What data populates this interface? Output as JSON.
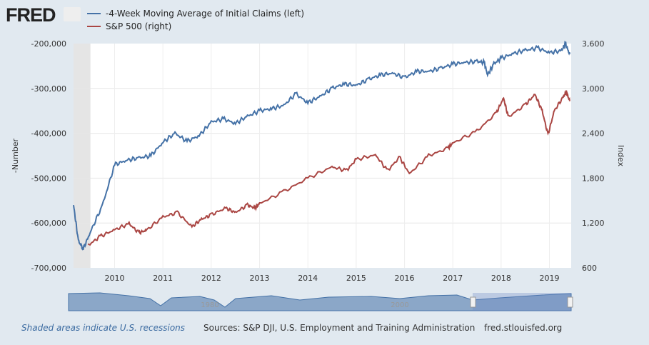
{
  "logo": "FRED",
  "footer": {
    "recession_note": "Shaded areas indicate U.S. recessions",
    "sources": "Sources: S&P DJI, U.S. Employment and Training Administration",
    "site": "fred.stlouisfed.org"
  },
  "navigator": {
    "labels": [
      "1980",
      "2000"
    ]
  },
  "chart_data": {
    "type": "line",
    "xlim": [
      2009.15,
      2019.45
    ],
    "x_ticks": [
      2010,
      2011,
      2012,
      2013,
      2014,
      2015,
      2016,
      2017,
      2018,
      2019
    ],
    "ylabel_left": "-Number",
    "ylabel_right": "Index",
    "ylim_left": [
      -700000,
      -200000
    ],
    "ylim_right": [
      600,
      3600
    ],
    "yticks_left": [
      "-200,000",
      "-300,000",
      "-400,000",
      "-500,000",
      "-600,000",
      "-700,000"
    ],
    "yticks_right": [
      "3,600",
      "3,000",
      "2,400",
      "1,800",
      "1,200",
      "600"
    ],
    "grid": true,
    "legend": "top-left",
    "recessions": [
      [
        2009.15,
        2009.5
      ]
    ],
    "series": [
      {
        "name": "-4-Week Moving Average of Initial Claims (left)",
        "axis": "left",
        "color": "#4572a7",
        "x": [
          2009.15,
          2009.25,
          2009.35,
          2009.5,
          2009.75,
          2010.0,
          2010.25,
          2010.5,
          2010.75,
          2011.0,
          2011.25,
          2011.5,
          2011.75,
          2012.0,
          2012.25,
          2012.5,
          2012.75,
          2013.0,
          2013.25,
          2013.5,
          2013.75,
          2014.0,
          2014.25,
          2014.5,
          2014.75,
          2015.0,
          2015.25,
          2015.5,
          2015.75,
          2016.0,
          2016.25,
          2016.5,
          2016.75,
          2017.0,
          2017.25,
          2017.5,
          2017.65,
          2017.72,
          2017.85,
          2018.0,
          2018.25,
          2018.5,
          2018.75,
          2019.0,
          2019.25,
          2019.33,
          2019.42
        ],
        "y": [
          -560000,
          -640000,
          -658000,
          -620000,
          -560000,
          -470000,
          -460000,
          -455000,
          -450000,
          -420000,
          -400000,
          -418000,
          -405000,
          -375000,
          -368000,
          -378000,
          -362000,
          -350000,
          -345000,
          -338000,
          -312000,
          -332000,
          -318000,
          -300000,
          -290000,
          -293000,
          -280000,
          -270000,
          -266000,
          -276000,
          -262000,
          -262000,
          -255000,
          -246000,
          -242000,
          -240000,
          -242000,
          -270000,
          -245000,
          -233000,
          -222000,
          -215000,
          -210000,
          -220000,
          -216000,
          -200000,
          -224000
        ]
      },
      {
        "name": "S&P 500 (right)",
        "axis": "right",
        "color": "#aa4643",
        "x": [
          2009.45,
          2009.7,
          2010.0,
          2010.3,
          2010.5,
          2010.65,
          2011.0,
          2011.3,
          2011.6,
          2011.8,
          2012.0,
          2012.3,
          2012.5,
          2012.75,
          2012.9,
          2013.0,
          2013.5,
          2014.0,
          2014.5,
          2014.8,
          2015.0,
          2015.4,
          2015.65,
          2015.9,
          2016.1,
          2016.5,
          2016.9,
          2017.0,
          2017.5,
          2017.9,
          2018.05,
          2018.15,
          2018.5,
          2018.7,
          2018.85,
          2018.97,
          2019.1,
          2019.3,
          2019.35,
          2019.42
        ],
        "y": [
          900,
          1020,
          1110,
          1190,
          1070,
          1100,
          1280,
          1340,
          1150,
          1250,
          1310,
          1400,
          1340,
          1440,
          1400,
          1460,
          1620,
          1800,
          1950,
          1900,
          2050,
          2110,
          1900,
          2080,
          1860,
          2100,
          2200,
          2270,
          2430,
          2670,
          2870,
          2620,
          2780,
          2920,
          2700,
          2380,
          2700,
          2900,
          2950,
          2830
        ]
      }
    ]
  }
}
